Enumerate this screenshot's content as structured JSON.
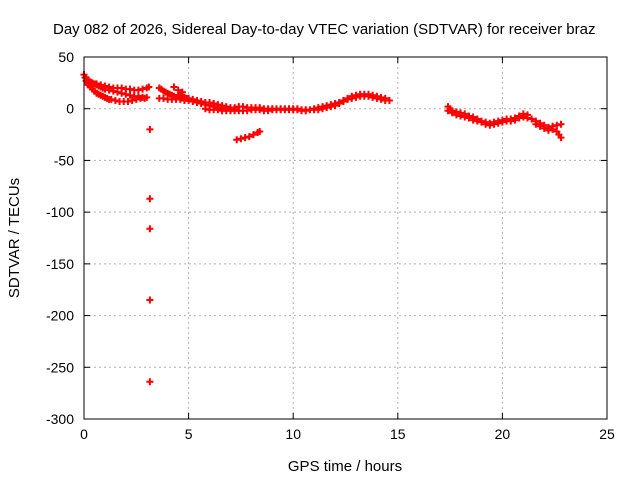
{
  "chart_data": {
    "type": "scatter",
    "title": "Day 082 of 2026, Sidereal Day-to-day VTEC variation (SDTVAR) for receiver braz",
    "xlabel": "GPS time / hours",
    "ylabel": "SDTVAR / TECUs",
    "xlim": [
      0,
      25
    ],
    "ylim": [
      -300,
      50
    ],
    "xticks": [
      0,
      5,
      10,
      15,
      20,
      25
    ],
    "yticks": [
      50,
      0,
      -50,
      -100,
      -150,
      -200,
      -250,
      -300
    ],
    "grid": true,
    "marker": "plus",
    "colors": {
      "series": "#ff0000",
      "grid": "#b0b0b0",
      "axis": "#000000"
    },
    "series": [
      {
        "name": "SDTVAR",
        "points": [
          [
            0.0,
            33
          ],
          [
            0.05,
            30
          ],
          [
            0.1,
            27
          ],
          [
            0.15,
            25
          ],
          [
            0.2,
            23
          ],
          [
            0.3,
            21
          ],
          [
            0.4,
            19
          ],
          [
            0.5,
            17
          ],
          [
            0.6,
            15
          ],
          [
            0.7,
            14
          ],
          [
            0.8,
            13
          ],
          [
            0.9,
            12
          ],
          [
            1.0,
            11
          ],
          [
            1.1,
            10
          ],
          [
            1.2,
            9
          ],
          [
            1.3,
            9
          ],
          [
            1.5,
            8
          ],
          [
            1.7,
            7
          ],
          [
            1.9,
            7
          ],
          [
            2.1,
            7
          ],
          [
            2.3,
            8
          ],
          [
            2.5,
            9
          ],
          [
            2.7,
            10
          ],
          [
            2.9,
            10
          ],
          [
            0.1,
            30
          ],
          [
            0.2,
            28
          ],
          [
            0.3,
            26
          ],
          [
            0.4,
            25
          ],
          [
            0.5,
            24
          ],
          [
            0.6,
            23
          ],
          [
            0.7,
            22
          ],
          [
            0.8,
            21
          ],
          [
            0.9,
            20
          ],
          [
            1.0,
            19
          ],
          [
            1.2,
            18
          ],
          [
            1.4,
            17
          ],
          [
            1.6,
            16
          ],
          [
            1.8,
            15
          ],
          [
            2.0,
            14
          ],
          [
            2.2,
            13
          ],
          [
            2.4,
            12
          ],
          [
            2.6,
            12
          ],
          [
            2.8,
            11
          ],
          [
            3.0,
            11
          ],
          [
            0.6,
            24
          ],
          [
            0.8,
            23
          ],
          [
            1.0,
            22
          ],
          [
            1.2,
            21
          ],
          [
            1.4,
            20
          ],
          [
            1.6,
            20
          ],
          [
            1.8,
            20
          ],
          [
            2.0,
            19
          ],
          [
            2.2,
            19
          ],
          [
            2.4,
            18
          ],
          [
            2.6,
            18
          ],
          [
            2.8,
            19
          ],
          [
            3.0,
            20
          ],
          [
            3.1,
            21
          ],
          [
            3.15,
            -20
          ],
          [
            3.15,
            -87
          ],
          [
            3.15,
            -116
          ],
          [
            3.15,
            -185
          ],
          [
            3.15,
            -264
          ],
          [
            3.6,
            20
          ],
          [
            3.7,
            19
          ],
          [
            3.8,
            17
          ],
          [
            3.9,
            16
          ],
          [
            4.0,
            15
          ],
          [
            4.1,
            14
          ],
          [
            4.2,
            13
          ],
          [
            4.3,
            12
          ],
          [
            4.4,
            11
          ],
          [
            4.5,
            12
          ],
          [
            4.6,
            13
          ],
          [
            4.7,
            12
          ],
          [
            4.8,
            11
          ],
          [
            4.9,
            10
          ],
          [
            5.0,
            10
          ],
          [
            3.6,
            10
          ],
          [
            3.8,
            10
          ],
          [
            4.0,
            9
          ],
          [
            4.2,
            9
          ],
          [
            4.4,
            9
          ],
          [
            4.6,
            9
          ],
          [
            4.8,
            8
          ],
          [
            5.0,
            8
          ],
          [
            5.2,
            7
          ],
          [
            5.4,
            6
          ],
          [
            5.6,
            5
          ],
          [
            5.8,
            4
          ],
          [
            6.0,
            3
          ],
          [
            6.2,
            2
          ],
          [
            6.4,
            1
          ],
          [
            6.6,
            0
          ],
          [
            6.8,
            0
          ],
          [
            7.0,
            -1
          ],
          [
            7.2,
            -1
          ],
          [
            4.3,
            21
          ],
          [
            4.5,
            18
          ],
          [
            4.7,
            16
          ],
          [
            5.2,
            9
          ],
          [
            5.4,
            8
          ],
          [
            5.6,
            7
          ],
          [
            5.8,
            6
          ],
          [
            6.0,
            6
          ],
          [
            6.2,
            5
          ],
          [
            6.4,
            4
          ],
          [
            6.6,
            3
          ],
          [
            6.8,
            2
          ],
          [
            7.0,
            1
          ],
          [
            7.2,
            1
          ],
          [
            5.8,
            0
          ],
          [
            6.0,
            -1
          ],
          [
            6.2,
            -1
          ],
          [
            6.4,
            -1
          ],
          [
            6.6,
            -2
          ],
          [
            6.8,
            -2
          ],
          [
            7.0,
            -2
          ],
          [
            7.2,
            -2
          ],
          [
            7.4,
            -2
          ],
          [
            7.6,
            -2
          ],
          [
            7.8,
            -2
          ],
          [
            7.3,
            -30
          ],
          [
            7.5,
            -29
          ],
          [
            7.7,
            -28
          ],
          [
            7.9,
            -27
          ],
          [
            8.1,
            -25
          ],
          [
            8.3,
            -23
          ],
          [
            8.4,
            -22
          ],
          [
            7.4,
            2
          ],
          [
            7.6,
            2
          ],
          [
            7.8,
            1
          ],
          [
            8.0,
            1
          ],
          [
            8.2,
            1
          ],
          [
            8.4,
            1
          ],
          [
            8.6,
            0
          ],
          [
            8.8,
            0
          ],
          [
            9.0,
            0
          ],
          [
            9.2,
            0
          ],
          [
            9.4,
            0
          ],
          [
            9.6,
            0
          ],
          [
            9.8,
            0
          ],
          [
            10.0,
            0
          ],
          [
            10.2,
            0
          ],
          [
            10.4,
            -1
          ],
          [
            10.6,
            -1
          ],
          [
            10.8,
            -1
          ],
          [
            8.0,
            -1
          ],
          [
            8.2,
            -1
          ],
          [
            8.4,
            -1
          ],
          [
            8.6,
            -2
          ],
          [
            8.8,
            -2
          ],
          [
            9.0,
            -1
          ],
          [
            9.2,
            -1
          ],
          [
            9.4,
            -1
          ],
          [
            9.6,
            -1
          ],
          [
            9.8,
            -1
          ],
          [
            10.0,
            -1
          ],
          [
            10.2,
            -1
          ],
          [
            10.4,
            -2
          ],
          [
            10.6,
            -2
          ],
          [
            11.0,
            0
          ],
          [
            11.2,
            1
          ],
          [
            11.4,
            2
          ],
          [
            11.6,
            3
          ],
          [
            11.8,
            4
          ],
          [
            12.0,
            5
          ],
          [
            12.2,
            6
          ],
          [
            12.4,
            8
          ],
          [
            12.6,
            10
          ],
          [
            12.8,
            12
          ],
          [
            13.0,
            13
          ],
          [
            13.2,
            14
          ],
          [
            13.4,
            14
          ],
          [
            13.6,
            14
          ],
          [
            13.8,
            13
          ],
          [
            14.0,
            12
          ],
          [
            14.2,
            11
          ],
          [
            14.4,
            10
          ],
          [
            14.6,
            8
          ],
          [
            11.0,
            -1
          ],
          [
            11.2,
            -1
          ],
          [
            11.4,
            0
          ],
          [
            11.6,
            1
          ],
          [
            11.8,
            2
          ],
          [
            12.0,
            3
          ],
          [
            12.2,
            5
          ],
          [
            12.4,
            7
          ],
          [
            12.6,
            9
          ],
          [
            12.8,
            10
          ],
          [
            13.0,
            11
          ],
          [
            13.2,
            12
          ],
          [
            13.4,
            12
          ],
          [
            13.6,
            12
          ],
          [
            13.8,
            11
          ],
          [
            14.0,
            10
          ],
          [
            14.2,
            9
          ],
          [
            14.4,
            8
          ],
          [
            17.4,
            2
          ],
          [
            17.5,
            0
          ],
          [
            17.6,
            -2
          ],
          [
            17.8,
            -3
          ],
          [
            18.0,
            -4
          ],
          [
            18.2,
            -5
          ],
          [
            18.4,
            -7
          ],
          [
            18.6,
            -8
          ],
          [
            18.8,
            -10
          ],
          [
            19.0,
            -12
          ],
          [
            19.2,
            -13
          ],
          [
            19.4,
            -14
          ],
          [
            19.6,
            -13
          ],
          [
            19.8,
            -12
          ],
          [
            20.0,
            -11
          ],
          [
            20.2,
            -10
          ],
          [
            20.4,
            -10
          ],
          [
            20.6,
            -9
          ],
          [
            20.8,
            -7
          ],
          [
            21.0,
            -5
          ],
          [
            21.2,
            -6
          ],
          [
            17.4,
            -2
          ],
          [
            17.6,
            -4
          ],
          [
            17.8,
            -6
          ],
          [
            18.0,
            -7
          ],
          [
            18.2,
            -8
          ],
          [
            18.4,
            -9
          ],
          [
            18.6,
            -11
          ],
          [
            18.8,
            -12
          ],
          [
            19.0,
            -13
          ],
          [
            19.2,
            -15
          ],
          [
            19.4,
            -16
          ],
          [
            19.6,
            -15
          ],
          [
            19.8,
            -14
          ],
          [
            20.0,
            -13
          ],
          [
            20.2,
            -12
          ],
          [
            20.4,
            -12
          ],
          [
            20.6,
            -11
          ],
          [
            20.8,
            -9
          ],
          [
            21.0,
            -8
          ],
          [
            21.2,
            -9
          ],
          [
            21.4,
            -10
          ],
          [
            21.6,
            -12
          ],
          [
            21.8,
            -14
          ],
          [
            22.0,
            -16
          ],
          [
            22.2,
            -18
          ],
          [
            22.4,
            -17
          ],
          [
            22.6,
            -16
          ],
          [
            22.8,
            -15
          ],
          [
            21.6,
            -15
          ],
          [
            21.8,
            -17
          ],
          [
            22.0,
            -19
          ],
          [
            22.2,
            -21
          ],
          [
            22.4,
            -20
          ],
          [
            22.6,
            -22
          ],
          [
            22.7,
            -25
          ],
          [
            22.8,
            -28
          ]
        ]
      }
    ]
  }
}
